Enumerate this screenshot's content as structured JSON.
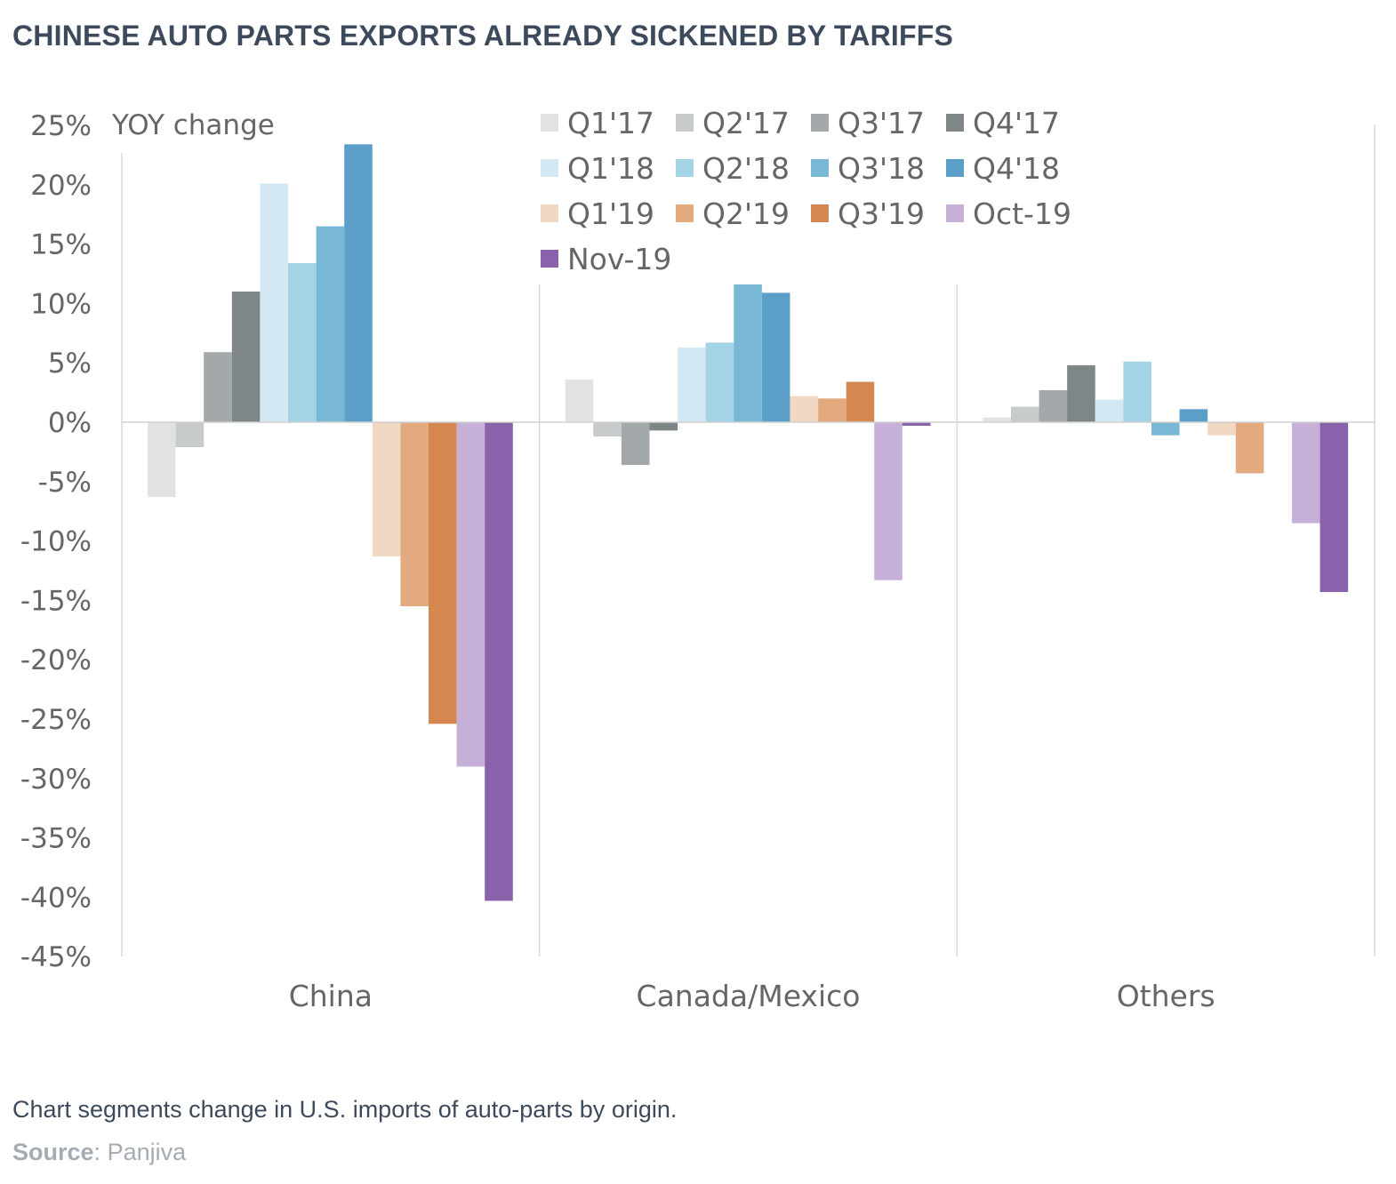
{
  "title": "CHINESE AUTO PARTS EXPORTS ALREADY SICKENED BY TARIFFS",
  "caption": "Chart segments change in U.S. imports of auto-parts by origin.",
  "source": {
    "label": "Source",
    "separator": ":",
    "value": "Panjiva"
  },
  "chart_data": {
    "type": "bar",
    "ylabel": "YOY change",
    "xlabel": "",
    "ylim": [
      -45,
      25
    ],
    "yticks": [
      25,
      20,
      15,
      10,
      5,
      0,
      -5,
      -10,
      -15,
      -20,
      -25,
      -30,
      -35,
      -40,
      -45
    ],
    "ytick_labels": [
      "25%",
      "20%",
      "15%",
      "10%",
      "5%",
      "0%",
      "-5%",
      "-10%",
      "-15%",
      "-20%",
      "-25%",
      "-30%",
      "-35%",
      "-40%",
      "-45%"
    ],
    "categories": [
      "China",
      "Canada/Mexico",
      "Others"
    ],
    "grid": false,
    "legend_position": "top-right",
    "series": [
      {
        "name": "Q1'17",
        "color": "#e1e2e2",
        "values": [
          -6.3,
          3.6,
          0.4
        ]
      },
      {
        "name": "Q2'17",
        "color": "#c8cbcc",
        "values": [
          -2.1,
          -1.2,
          1.3
        ]
      },
      {
        "name": "Q3'17",
        "color": "#a3a8aa",
        "values": [
          5.9,
          -3.6,
          2.7
        ]
      },
      {
        "name": "Q4'17",
        "color": "#7f8688",
        "values": [
          11.0,
          -0.7,
          4.8
        ]
      },
      {
        "name": "Q1'18",
        "color": "#d3e8f3",
        "values": [
          20.1,
          6.3,
          1.9
        ]
      },
      {
        "name": "Q2'18",
        "color": "#a4d3e6",
        "values": [
          13.4,
          6.7,
          5.1
        ]
      },
      {
        "name": "Q3'18",
        "color": "#79b8d5",
        "values": [
          16.5,
          11.6,
          -1.1
        ]
      },
      {
        "name": "Q4'18",
        "color": "#5b9ec8",
        "values": [
          23.4,
          10.9,
          1.1
        ]
      },
      {
        "name": "Q1'19",
        "color": "#f1d8c2",
        "values": [
          -11.3,
          2.2,
          -1.1
        ]
      },
      {
        "name": "Q2'19",
        "color": "#e3aa80",
        "values": [
          -15.5,
          2.0,
          -4.3
        ]
      },
      {
        "name": "Q3'19",
        "color": "#d4874f",
        "values": [
          -25.4,
          3.4,
          0.0
        ]
      },
      {
        "name": "Oct-19",
        "color": "#c6b0d7",
        "values": [
          -29.0,
          -13.3,
          -8.5
        ]
      },
      {
        "name": "Nov-19",
        "color": "#8962ab",
        "values": [
          -40.3,
          -0.3,
          -14.3
        ]
      }
    ]
  }
}
